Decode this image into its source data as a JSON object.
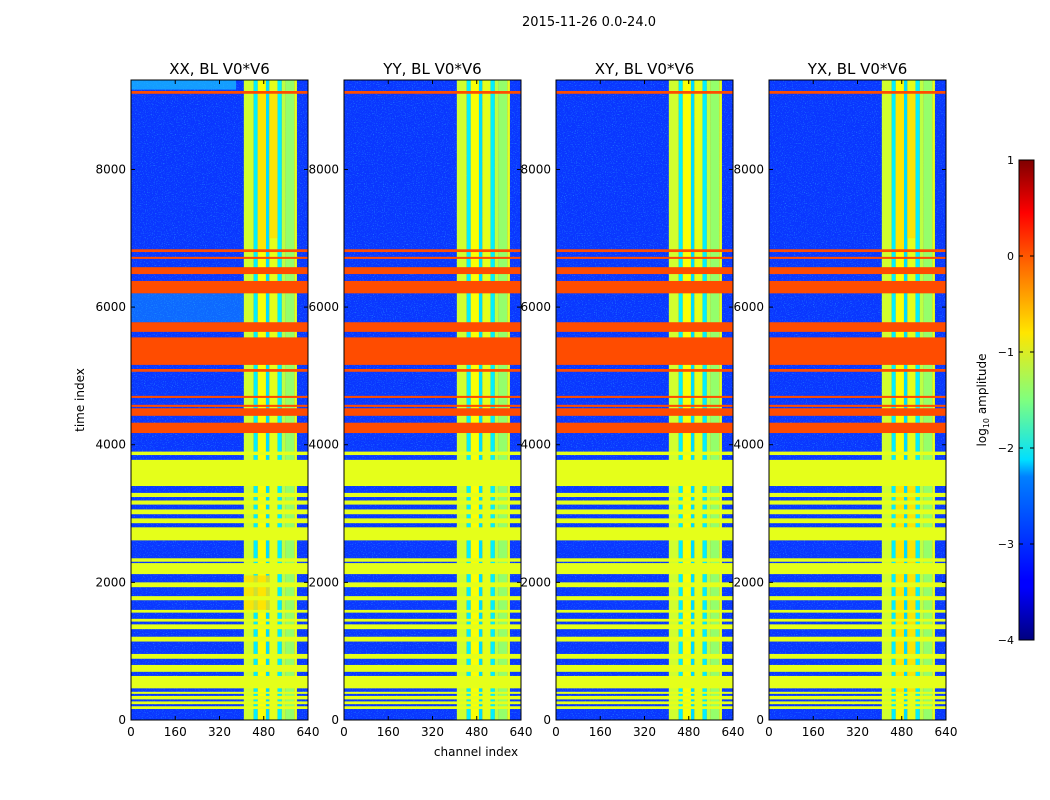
{
  "figure_title": "2015-11-26 0.0-24.0",
  "colors": {
    "background_blue": "#0a37ff",
    "flag_orange": "#ff6c00",
    "flag_green": "#9bff5a",
    "edge_yellow": "#ffdf00",
    "cyan": "#18c8ff",
    "dark_blue": "#00008f"
  },
  "chart_data": {
    "type": "heatmap",
    "panels": [
      {
        "title": "XX, BL V0*V6",
        "hot_band": "upper"
      },
      {
        "title": "YY, BL V0*V6",
        "hot_band": "none"
      },
      {
        "title": "XY, BL V0*V6",
        "hot_band": "none"
      },
      {
        "title": "YX, BL V0*V6",
        "hot_band": "both"
      }
    ],
    "xlabel": "channel index",
    "ylabel": "time index",
    "xlim": [
      0,
      640
    ],
    "ylim": [
      0,
      9300
    ],
    "xticks": [
      0,
      160,
      320,
      480,
      640
    ],
    "yticks": [
      0,
      2000,
      4000,
      6000,
      8000
    ],
    "rfi_channel_bands": [
      {
        "start": 408,
        "end": 444,
        "level": -1.1
      },
      {
        "start": 444,
        "end": 458,
        "level": -2.2
      },
      {
        "start": 458,
        "end": 488,
        "level": -0.9
      },
      {
        "start": 488,
        "end": 500,
        "level": -2.3
      },
      {
        "start": 500,
        "end": 530,
        "level": -1.0
      },
      {
        "start": 530,
        "end": 545,
        "level": -2.2
      },
      {
        "start": 545,
        "end": 560,
        "level": -1.2
      },
      {
        "start": 560,
        "end": 590,
        "level": -1.4
      },
      {
        "start": 590,
        "end": 600,
        "level": -1.0
      }
    ],
    "flagged_time_ranges": [
      {
        "start": 9100,
        "end": 9140,
        "value": 0.0
      },
      {
        "start": 6800,
        "end": 6840,
        "value": 0.0
      },
      {
        "start": 6700,
        "end": 6730,
        "value": 0.0
      },
      {
        "start": 6480,
        "end": 6580,
        "value": 0.0
      },
      {
        "start": 6200,
        "end": 6380,
        "value": 0.0
      },
      {
        "start": 5640,
        "end": 5780,
        "value": 0.0
      },
      {
        "start": 5160,
        "end": 5560,
        "value": 0.0
      },
      {
        "start": 5060,
        "end": 5100,
        "value": 0.0
      },
      {
        "start": 4680,
        "end": 4710,
        "value": 0.0
      },
      {
        "start": 4550,
        "end": 4580,
        "value": 0.0
      },
      {
        "start": 4420,
        "end": 4530,
        "value": 0.0
      },
      {
        "start": 4170,
        "end": 4320,
        "value": 0.0
      },
      {
        "start": 3850,
        "end": 3900,
        "value": -1.0
      },
      {
        "start": 3400,
        "end": 3780,
        "value": -1.0
      },
      {
        "start": 3240,
        "end": 3300,
        "value": -1.0
      },
      {
        "start": 3130,
        "end": 3190,
        "value": -1.0
      },
      {
        "start": 2990,
        "end": 3060,
        "value": -1.0
      },
      {
        "start": 2860,
        "end": 2930,
        "value": -1.0
      },
      {
        "start": 2610,
        "end": 2800,
        "value": -1.0
      },
      {
        "start": 2300,
        "end": 2350,
        "value": -1.0
      },
      {
        "start": 2120,
        "end": 2280,
        "value": -1.0
      },
      {
        "start": 1930,
        "end": 2000,
        "value": -1.0
      },
      {
        "start": 1740,
        "end": 1800,
        "value": -1.0
      },
      {
        "start": 1560,
        "end": 1600,
        "value": -1.0
      },
      {
        "start": 1430,
        "end": 1470,
        "value": -1.0
      },
      {
        "start": 1320,
        "end": 1390,
        "value": -1.0
      },
      {
        "start": 1140,
        "end": 1210,
        "value": -1.0
      },
      {
        "start": 890,
        "end": 960,
        "value": -1.0
      },
      {
        "start": 700,
        "end": 800,
        "value": -1.0
      },
      {
        "start": 460,
        "end": 640,
        "value": -1.0
      },
      {
        "start": 380,
        "end": 410,
        "value": -1.0
      },
      {
        "start": 300,
        "end": 350,
        "value": -1.0
      },
      {
        "start": 230,
        "end": 270,
        "value": -1.0
      },
      {
        "start": 160,
        "end": 200,
        "value": -1.0
      }
    ],
    "colorbar": {
      "label": "log10 amplitude",
      "label_main": "log",
      "label_sub": "10",
      "label_rest": " amplitude",
      "min": -4,
      "max": 1,
      "ticks": [
        "1",
        "0",
        "−1",
        "−2",
        "−3",
        "−4"
      ],
      "tick_values": [
        1,
        0,
        -1,
        -2,
        -3,
        -4
      ]
    }
  }
}
